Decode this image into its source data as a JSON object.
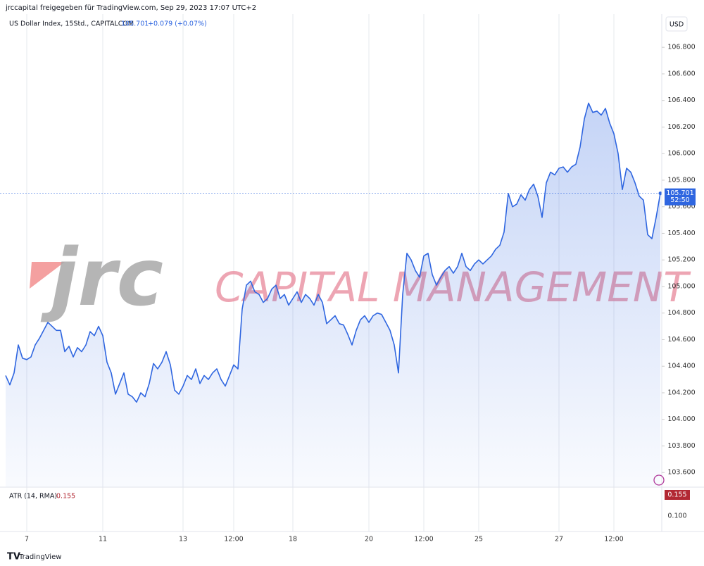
{
  "header": {
    "title": "jrccapital freigegeben für TradingView.com, Sep 29, 2023 17:07 UTC+2"
  },
  "chart_data": {
    "type": "area",
    "currency": "USD",
    "legend": {
      "last": "105.701",
      "change": "+0.079 (+0.07%)"
    },
    "price_label": "105.701",
    "countdown": "52:50",
    "watermark": {
      "logo": "jrc",
      "text": "CAPITAL MANAGEMENT"
    },
    "categories": [
      null,
      null,
      null,
      null,
      null,
      "7",
      null,
      null,
      null,
      null,
      null,
      null,
      null,
      null,
      null,
      null,
      null,
      null,
      null,
      null,
      null,
      null,
      null,
      "11",
      null,
      null,
      null,
      null,
      null,
      null,
      null,
      null,
      null,
      null,
      null,
      null,
      null,
      null,
      null,
      null,
      null,
      null,
      "13",
      null,
      null,
      null,
      null,
      null,
      null,
      null,
      null,
      null,
      null,
      null,
      "12:00",
      null,
      null,
      null,
      null,
      null,
      null,
      null,
      null,
      null,
      null,
      null,
      null,
      null,
      "18",
      null,
      null,
      null,
      null,
      null,
      null,
      null,
      null,
      null,
      null,
      null,
      null,
      null,
      null,
      null,
      null,
      null,
      "20",
      null,
      null,
      null,
      null,
      null,
      null,
      null,
      null,
      null,
      null,
      null,
      null,
      "12:00",
      null,
      null,
      null,
      null,
      null,
      null,
      null,
      null,
      null,
      null,
      null,
      null,
      "25",
      null,
      null,
      null,
      null,
      null,
      null,
      null,
      null,
      null,
      null,
      null,
      null,
      null,
      null,
      null,
      null,
      null,
      null,
      "27",
      null,
      null,
      null,
      null,
      null,
      null,
      null,
      null,
      null,
      null,
      null,
      null,
      "12:00",
      null,
      null,
      null,
      null,
      null,
      null,
      null,
      null,
      null,
      null,
      null
    ],
    "series": [
      {
        "name": "US Dollar Index, 15Std., CAPITALCOM",
        "color": "#2f66e0",
        "values": [
          104.33,
          104.26,
          104.35,
          104.56,
          104.46,
          104.45,
          104.47,
          104.56,
          104.61,
          104.67,
          104.73,
          104.7,
          104.67,
          104.67,
          104.51,
          104.55,
          104.47,
          104.54,
          104.51,
          104.56,
          104.66,
          104.63,
          104.7,
          104.63,
          104.43,
          104.35,
          104.19,
          104.27,
          104.35,
          104.19,
          104.17,
          104.13,
          104.2,
          104.17,
          104.27,
          104.42,
          104.38,
          104.43,
          104.51,
          104.41,
          104.22,
          104.19,
          104.25,
          104.33,
          104.3,
          104.38,
          104.27,
          104.33,
          104.3,
          104.35,
          104.38,
          104.3,
          104.25,
          104.33,
          104.41,
          104.38,
          104.83,
          105.01,
          105.04,
          104.96,
          104.94,
          104.88,
          104.91,
          104.98,
          105.01,
          104.91,
          104.94,
          104.86,
          104.91,
          104.96,
          104.88,
          104.94,
          104.91,
          104.86,
          104.94,
          104.88,
          104.72,
          104.75,
          104.78,
          104.72,
          104.71,
          104.64,
          104.56,
          104.67,
          104.75,
          104.78,
          104.73,
          104.78,
          104.8,
          104.79,
          104.73,
          104.67,
          104.56,
          104.35,
          104.94,
          105.25,
          105.2,
          105.12,
          105.07,
          105.23,
          105.25,
          105.09,
          105.01,
          105.07,
          105.12,
          105.15,
          105.1,
          105.15,
          105.25,
          105.15,
          105.12,
          105.17,
          105.2,
          105.17,
          105.2,
          105.23,
          105.28,
          105.31,
          105.41,
          105.7,
          105.6,
          105.62,
          105.69,
          105.65,
          105.73,
          105.77,
          105.68,
          105.52,
          105.78,
          105.86,
          105.84,
          105.89,
          105.9,
          105.86,
          105.9,
          105.92,
          106.05,
          106.26,
          106.38,
          106.31,
          106.32,
          106.29,
          106.34,
          106.23,
          106.15,
          106.0,
          105.73,
          105.89,
          105.86,
          105.78,
          105.68,
          105.65,
          105.39,
          105.36,
          105.52,
          105.701
        ]
      }
    ],
    "ylim": [
      103.49,
      107.05
    ],
    "yticks": [
      {
        "value": 106.8,
        "label": "106.800"
      },
      {
        "value": 106.6,
        "label": "106.600"
      },
      {
        "value": 106.4,
        "label": "106.400"
      },
      {
        "value": 106.2,
        "label": "106.200"
      },
      {
        "value": 106.0,
        "label": "106.000"
      },
      {
        "value": 105.8,
        "label": "105.800"
      },
      {
        "value": 105.6,
        "label": "105.600"
      },
      {
        "value": 105.4,
        "label": "105.400"
      },
      {
        "value": 105.2,
        "label": "105.200"
      },
      {
        "value": 105.0,
        "label": "105.000"
      },
      {
        "value": 104.8,
        "label": "104.800"
      },
      {
        "value": 104.6,
        "label": "104.600"
      },
      {
        "value": 104.4,
        "label": "104.400"
      },
      {
        "value": 104.2,
        "label": "104.200"
      },
      {
        "value": 104.0,
        "label": "104.000"
      },
      {
        "value": 103.8,
        "label": "103.800"
      },
      {
        "value": 103.6,
        "label": "103.600"
      }
    ],
    "grid": true,
    "indicator": {
      "name": "ATR (14, RMA)",
      "value_label": "0.155",
      "tick": "0.100"
    }
  },
  "footer": {
    "brand": "TradingView"
  }
}
